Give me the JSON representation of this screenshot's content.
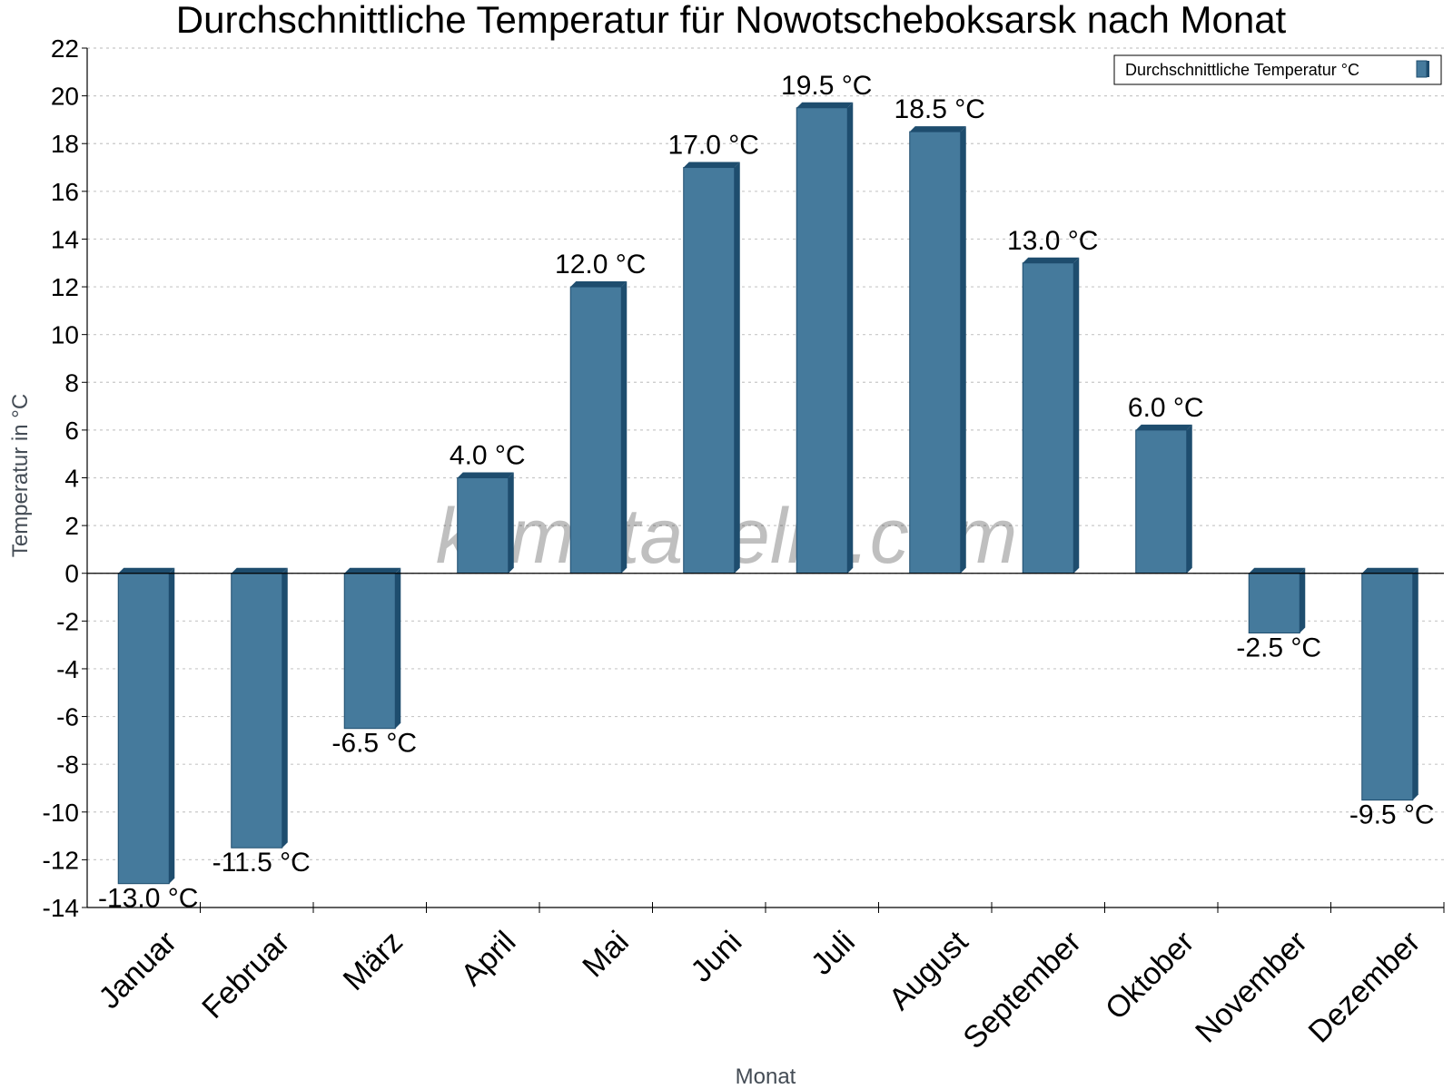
{
  "chart_data": {
    "type": "bar",
    "title": "Durchschnittliche Temperatur für Nowotscheboksarsk nach Monat",
    "xlabel": "Monat",
    "ylabel": "Temperatur in °C",
    "categories": [
      "Januar",
      "Februar",
      "März",
      "April",
      "Mai",
      "Juni",
      "Juli",
      "August",
      "September",
      "Oktober",
      "November",
      "Dezember"
    ],
    "series": [
      {
        "name": "Durchschnittliche Temperatur °C",
        "values": [
          -13.0,
          -11.5,
          -6.5,
          4.0,
          12.0,
          17.0,
          19.5,
          18.5,
          13.0,
          6.0,
          -2.5,
          -9.5
        ],
        "labels": [
          "-13.0 °C",
          "-11.5 °C",
          "-6.5 °C",
          "4.0 °C",
          "12.0 °C",
          "17.0 °C",
          "19.5 °C",
          "18.5 °C",
          "13.0 °C",
          "6.0 °C",
          "-2.5 °C",
          "-9.5 °C"
        ]
      }
    ],
    "ylim": [
      -14,
      22
    ],
    "yticks": [
      "22",
      "20",
      "18",
      "16",
      "14",
      "12",
      "10",
      "8",
      "6",
      "4",
      "2",
      "0",
      "-2",
      "-4",
      "-6",
      "-8",
      "-10",
      "-12",
      "-14"
    ],
    "grid": true,
    "legend_position": "top-right",
    "colors": {
      "bar": "#457a9c",
      "bar_side": "#1e4d6e",
      "bar_top": "#1e4d6e",
      "grid": "#c8c8c8"
    },
    "watermark": "klimatabelle.com"
  }
}
